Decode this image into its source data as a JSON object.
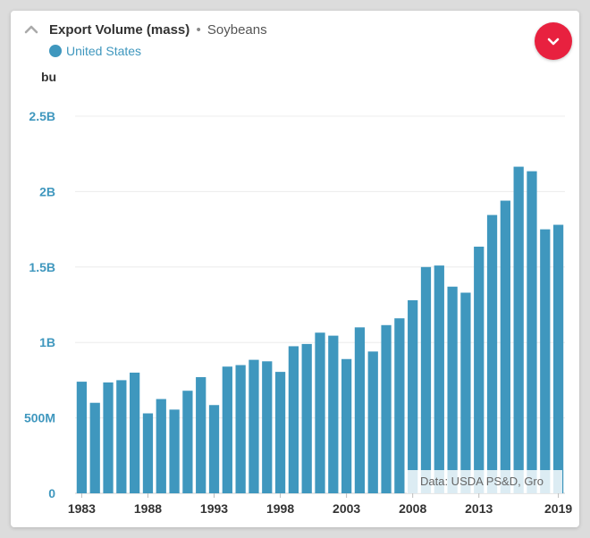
{
  "header": {
    "title": "Export Volume (mass)",
    "separator": "•",
    "subtitle": "Soybeans",
    "legend_label": "United States"
  },
  "icons": {
    "collapse": "chevron-up-icon",
    "menu": "chevron-down-icon"
  },
  "colors": {
    "bar": "#3f97be",
    "menu_button": "#e8213f",
    "legend": "#3f97be"
  },
  "source_note": "Data: USDA PS&D, Gro",
  "chart_data": {
    "type": "bar",
    "unit_label": "bu",
    "x": [
      1983,
      1984,
      1985,
      1986,
      1987,
      1988,
      1989,
      1990,
      1991,
      1992,
      1993,
      1994,
      1995,
      1996,
      1997,
      1998,
      1999,
      2000,
      2001,
      2002,
      2003,
      2004,
      2005,
      2006,
      2007,
      2008,
      2009,
      2010,
      2011,
      2012,
      2013,
      2014,
      2015,
      2016,
      2017,
      2018,
      2019
    ],
    "series": [
      {
        "name": "United States",
        "values": [
          740,
          600,
          735,
          750,
          800,
          530,
          625,
          555,
          680,
          770,
          585,
          840,
          850,
          885,
          875,
          805,
          975,
          990,
          1065,
          1045,
          890,
          1100,
          940,
          1115,
          1160,
          1280,
          1500,
          1510,
          1370,
          1330,
          1635,
          1845,
          1940,
          2165,
          2135,
          1750,
          1780
        ]
      }
    ],
    "value_multiplier": 1000000,
    "ylim": [
      0,
      2500000000
    ],
    "y_ticks": [
      {
        "value": 0,
        "label": "0"
      },
      {
        "value": 500000000,
        "label": "500M"
      },
      {
        "value": 1000000000,
        "label": "1B"
      },
      {
        "value": 1500000000,
        "label": "1.5B"
      },
      {
        "value": 2000000000,
        "label": "2B"
      },
      {
        "value": 2500000000,
        "label": "2.5B"
      }
    ],
    "x_ticks": [
      1983,
      1988,
      1993,
      1998,
      2003,
      2008,
      2013,
      2019
    ],
    "grid": true,
    "legend": "top-left"
  }
}
